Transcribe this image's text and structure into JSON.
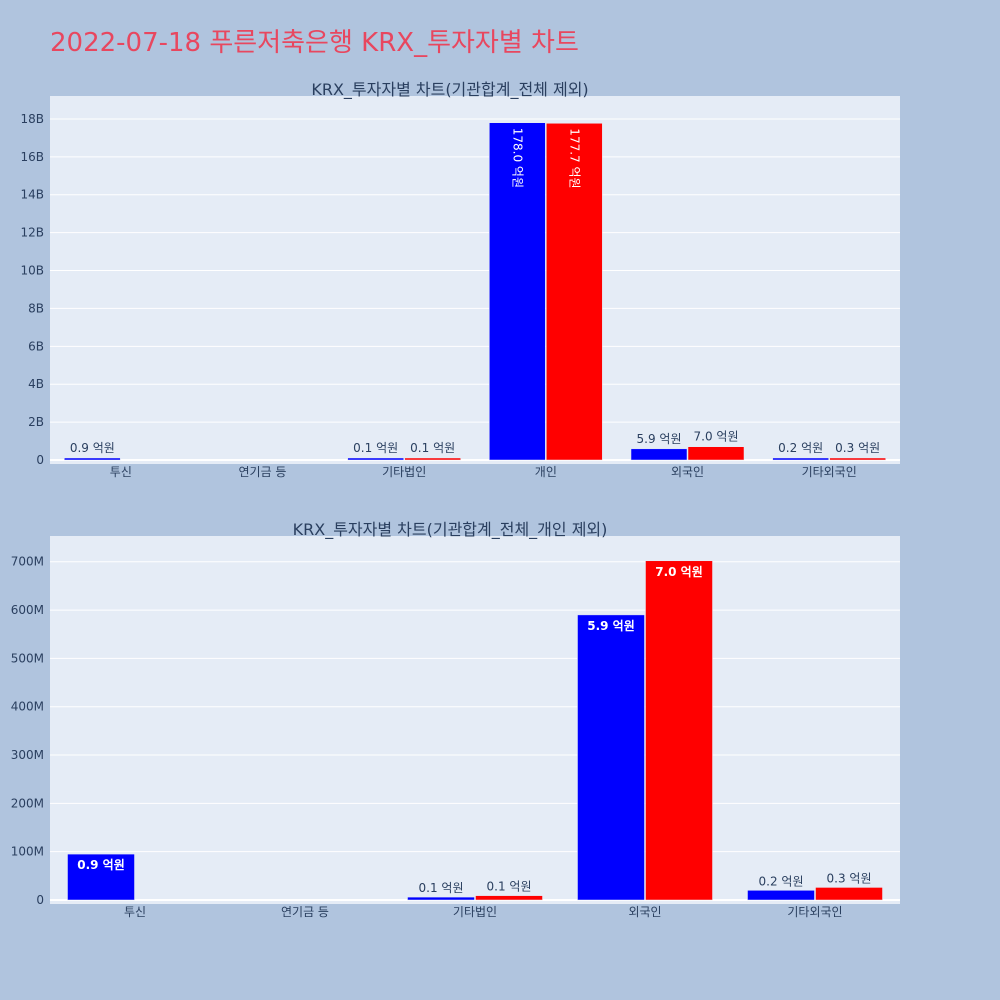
{
  "page_title": "2022-07-18 푸른저축은행 KRX_투자자별 차트",
  "chart_data": [
    {
      "type": "bar",
      "title": "KRX_투자자별 차트(기관합계_전체 제외)",
      "categories": [
        "투신",
        "연기금 등",
        "기타법인",
        "개인",
        "외국인",
        "기타외국인"
      ],
      "series": [
        {
          "color": "#0000ff",
          "values": [
            90000000,
            0,
            10000000,
            17800000000,
            590000000,
            20000000
          ],
          "labels": [
            "0.9 억원",
            "",
            "0.1 억원",
            "178.0 억원",
            "5.9 억원",
            "0.2 억원"
          ]
        },
        {
          "color": "#ff0000",
          "values": [
            0,
            0,
            10000000,
            17770000000,
            700000000,
            30000000
          ],
          "labels": [
            "",
            "",
            "0.1 억원",
            "177.7 억원",
            "7.0 억원",
            "0.3 억원"
          ]
        }
      ],
      "ylim": [
        0,
        19000000000
      ],
      "yticks": [
        0,
        2000000000,
        4000000000,
        6000000000,
        8000000000,
        10000000000,
        12000000000,
        14000000000,
        16000000000,
        18000000000
      ],
      "ytick_labels": [
        "0",
        "2B",
        "4B",
        "6B",
        "8B",
        "10B",
        "12B",
        "14B",
        "16B",
        "18B"
      ],
      "grid": true,
      "legend": "none"
    },
    {
      "type": "bar",
      "title": "KRX_투자자별 차트(기관합계_전체_개인 제외)",
      "categories": [
        "투신",
        "연기금 등",
        "기타법인",
        "외국인",
        "기타외국인"
      ],
      "series": [
        {
          "color": "#0000ff",
          "values": [
            95000000,
            0,
            6000000,
            590000000,
            20000000
          ],
          "labels": [
            "0.9 억원",
            "",
            "0.1 억원",
            "5.9 억원",
            "0.2 억원"
          ]
        },
        {
          "color": "#ff0000",
          "values": [
            0,
            0,
            9000000,
            702000000,
            26000000
          ],
          "labels": [
            "",
            "",
            "0.1 억원",
            "7.0 억원",
            "0.3 억원"
          ]
        }
      ],
      "ylim": [
        0,
        745000000
      ],
      "yticks": [
        0,
        100000000,
        200000000,
        300000000,
        400000000,
        500000000,
        600000000,
        700000000
      ],
      "ytick_labels": [
        "0",
        "100M",
        "200M",
        "300M",
        "400M",
        "500M",
        "600M",
        "700M"
      ],
      "grid": true,
      "legend": "none"
    }
  ]
}
